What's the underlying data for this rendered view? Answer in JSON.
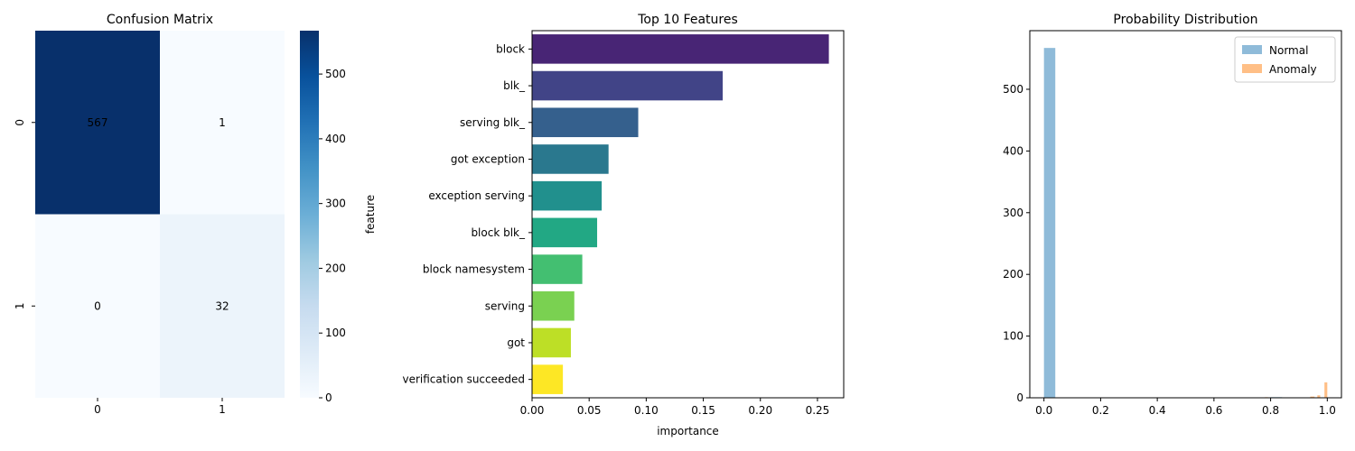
{
  "chart_data": [
    {
      "type": "heatmap",
      "title": "Confusion Matrix",
      "xlabel": "",
      "ylabel": "",
      "x_categories": [
        "0",
        "1"
      ],
      "y_categories": [
        "0",
        "1"
      ],
      "values": [
        [
          567,
          1
        ],
        [
          0,
          32
        ]
      ],
      "annotations": [
        [
          "567",
          "1"
        ],
        [
          "0",
          "32"
        ]
      ],
      "colormap": "Blues",
      "colorbar": {
        "min": 0,
        "max": 567,
        "ticks": [
          0,
          100,
          200,
          300,
          400,
          500
        ]
      }
    },
    {
      "type": "bar",
      "orientation": "horizontal",
      "title": "Top 10 Features",
      "xlabel": "importance",
      "ylabel": "feature",
      "categories": [
        "block",
        "blk_",
        "serving blk_",
        "got exception",
        "exception serving",
        "block blk_",
        "block namesystem",
        "serving",
        "got",
        "verification succeeded"
      ],
      "values": [
        0.26,
        0.167,
        0.093,
        0.067,
        0.061,
        0.057,
        0.044,
        0.037,
        0.034,
        0.027
      ],
      "xlim": [
        0,
        0.273
      ],
      "xticks": [
        "0.00",
        "0.05",
        "0.10",
        "0.15",
        "0.20",
        "0.25"
      ],
      "colors": [
        "#482575",
        "#414487",
        "#35608d",
        "#2a788e",
        "#21908d",
        "#22a884",
        "#43bf71",
        "#7ad151",
        "#bddf26",
        "#fde725"
      ],
      "colormap": "viridis"
    },
    {
      "type": "bar",
      "subtype": "histogram",
      "title": "Probability Distribution",
      "xlabel": "",
      "ylabel": "",
      "xlim": [
        -0.05,
        1.05
      ],
      "ylim": [
        0,
        595
      ],
      "xticks": [
        "0.0",
        "0.2",
        "0.4",
        "0.6",
        "0.8",
        "1.0"
      ],
      "yticks": [
        "0",
        "100",
        "200",
        "300",
        "400",
        "500"
      ],
      "legend_position": "top-right",
      "series": [
        {
          "name": "Normal",
          "color": "#1f77b4",
          "bins": [
            {
              "x0": 0.0,
              "x1": 0.04,
              "count": 567
            },
            {
              "x0": 0.8,
              "x1": 0.84,
              "count": 1
            }
          ]
        },
        {
          "name": "Anomaly",
          "color": "#ff7f0e",
          "bins": [
            {
              "x0": 0.78,
              "x1": 0.79,
              "count": 1
            },
            {
              "x0": 0.94,
              "x1": 0.955,
              "count": 2
            },
            {
              "x0": 0.965,
              "x1": 0.975,
              "count": 4
            },
            {
              "x0": 0.99,
              "x1": 1.0,
              "count": 25
            }
          ]
        }
      ]
    }
  ]
}
